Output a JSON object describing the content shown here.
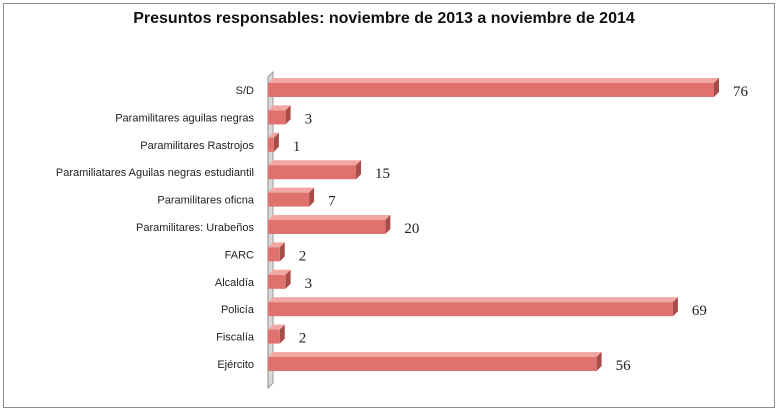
{
  "chart_data": {
    "type": "bar",
    "orientation": "horizontal",
    "title": "Presuntos responsables:  noviembre de 2013 a noviembre de 2014",
    "xlabel": "",
    "ylabel": "",
    "categories": [
      "S/D",
      "Paramilitares aguilas negras",
      "Paramilitares Rastrojos",
      "Paramiliatares Aguilas negras estudiantil",
      "Paramilitares oficna",
      "Paramilitares: Urabeños",
      "FARC",
      "Alcaldía",
      "Policía",
      "Fiscalía",
      "Ejército"
    ],
    "values": [
      76,
      3,
      1,
      15,
      7,
      20,
      2,
      3,
      69,
      2,
      56
    ],
    "value_labels": [
      "76",
      "3",
      "1",
      "15",
      "7",
      "20",
      "2",
      "3",
      "69",
      "2",
      "56"
    ],
    "xlim": [
      0,
      80
    ],
    "grid": false,
    "legend": "none",
    "colors": {
      "bar_face": "#e0726e",
      "bar_top": "#f2a7a2",
      "bar_side": "#a84c48",
      "axis_wall": "#d9d9d9"
    }
  }
}
